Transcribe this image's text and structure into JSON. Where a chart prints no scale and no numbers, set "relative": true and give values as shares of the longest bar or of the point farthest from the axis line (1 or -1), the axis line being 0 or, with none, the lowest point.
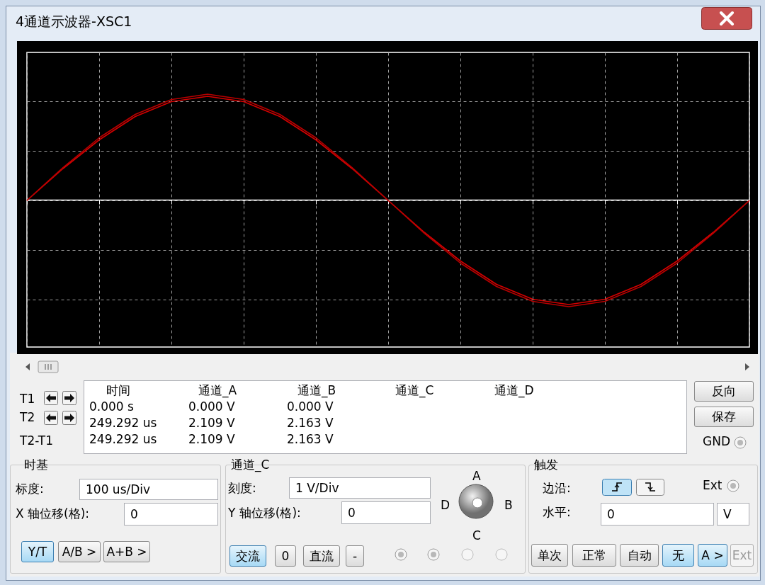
{
  "chart_data": [
    {
      "type": "line",
      "title": "4通道示波器-XSC1",
      "categories": [
        null,
        null,
        null,
        null,
        null,
        null,
        null,
        null,
        null,
        null,
        null,
        null,
        null,
        null,
        null,
        null,
        null,
        null,
        null,
        null,
        null
      ],
      "relative": true,
      "tick_labels": false,
      "grid": true,
      "line_style": "solid",
      "marker": "none",
      "series": [
        {
          "color": "#d40000",
          "values": [
            0,
            0.3,
            0.57,
            0.79,
            0.93,
            0.98,
            0.93,
            0.79,
            0.57,
            0.3,
            0,
            -0.3,
            -0.57,
            -0.79,
            -0.93,
            -0.98,
            -0.93,
            -0.79,
            -0.57,
            -0.3,
            0
          ]
        },
        {
          "color": "#b80000",
          "values": [
            0,
            0.31,
            0.59,
            0.81,
            0.95,
            1,
            0.95,
            0.81,
            0.59,
            0.31,
            0,
            -0.31,
            -0.59,
            -0.81,
            -0.95,
            -1,
            -0.95,
            -0.81,
            -0.59,
            -0.31,
            0
          ]
        }
      ]
    },
    {
      "type": "other",
      "annotations": [
        "时间",
        "通道_A",
        "通道_B",
        "通道_C",
        "通道_D",
        "0.000 s",
        "0.000 V",
        "0.000 V",
        "249.292 us",
        "2.109 V",
        "2.163 V",
        "249.292 us",
        "2.109 V",
        "2.163 V",
        "T1",
        "T2",
        "T2-T1",
        "反向",
        "保存",
        "GND",
        "时基",
        "标度:",
        "100 us/Div",
        "X 轴位移(格):",
        "0",
        "Y/T",
        "A/B >",
        "A+B >",
        "通道_C",
        "刻度:",
        "1  V/Div",
        "Y 轴位移(格):",
        "0",
        "交流",
        "0",
        "直流",
        "-",
        "A",
        "B",
        "C",
        "D",
        "触发",
        "边沿:",
        "Ext",
        "水平:",
        "0",
        "V",
        "单次",
        "正常",
        "自动",
        "无",
        "A >",
        "Ext"
      ]
    }
  ]
}
